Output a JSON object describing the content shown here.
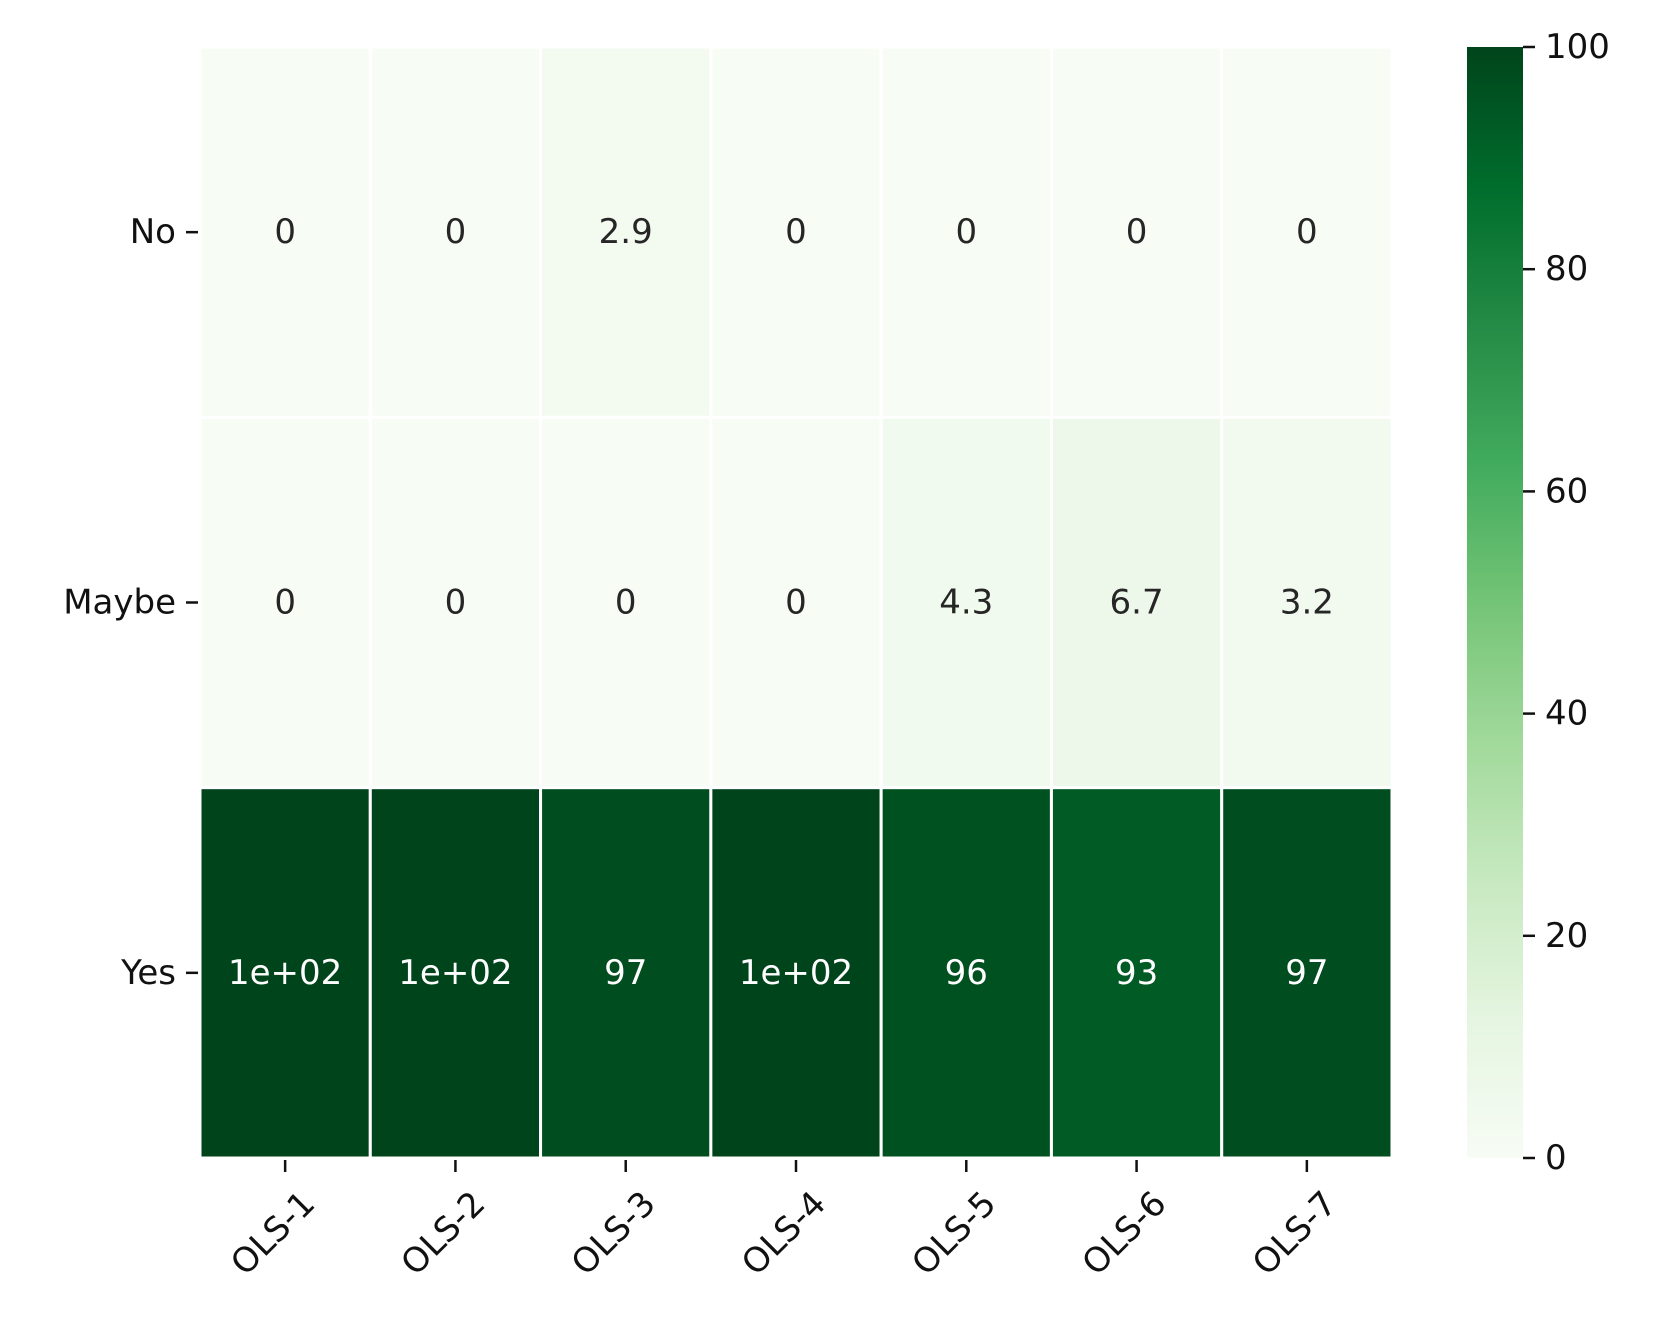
{
  "chart_data": {
    "type": "heatmap",
    "title": "",
    "xlabel": "",
    "ylabel": "",
    "x_categories": [
      "OLS-1",
      "OLS-2",
      "OLS-3",
      "OLS-4",
      "OLS-5",
      "OLS-6",
      "OLS-7"
    ],
    "y_categories": [
      "No",
      "Maybe",
      "Yes"
    ],
    "values": [
      [
        0,
        0,
        2.9,
        0,
        0,
        0,
        0
      ],
      [
        0,
        0,
        0,
        0,
        4.3,
        6.7,
        3.2
      ],
      [
        100,
        100,
        97,
        100,
        96,
        93,
        97
      ]
    ],
    "annotations": [
      [
        "0",
        "0",
        "2.9",
        "0",
        "0",
        "0",
        "0"
      ],
      [
        "0",
        "0",
        "0",
        "0",
        "4.3",
        "6.7",
        "3.2"
      ],
      [
        "1e+02",
        "1e+02",
        "97",
        "1e+02",
        "96",
        "93",
        "97"
      ]
    ],
    "colormap": "Greens",
    "colormap_stops": [
      "#f7fcf5",
      "#e5f5e0",
      "#c7e9c0",
      "#a1d99b",
      "#74c476",
      "#41ab5d",
      "#238b45",
      "#006d2c",
      "#00441b"
    ],
    "colorbar": {
      "range": [
        0,
        100
      ],
      "ticks": [
        0,
        20,
        40,
        60,
        80,
        100
      ],
      "tick_labels": [
        "0",
        "20",
        "40",
        "60",
        "80",
        "100"
      ]
    },
    "x_tick_rotation_deg": 45,
    "grid": false,
    "cell_border_color": "#ffffff"
  }
}
